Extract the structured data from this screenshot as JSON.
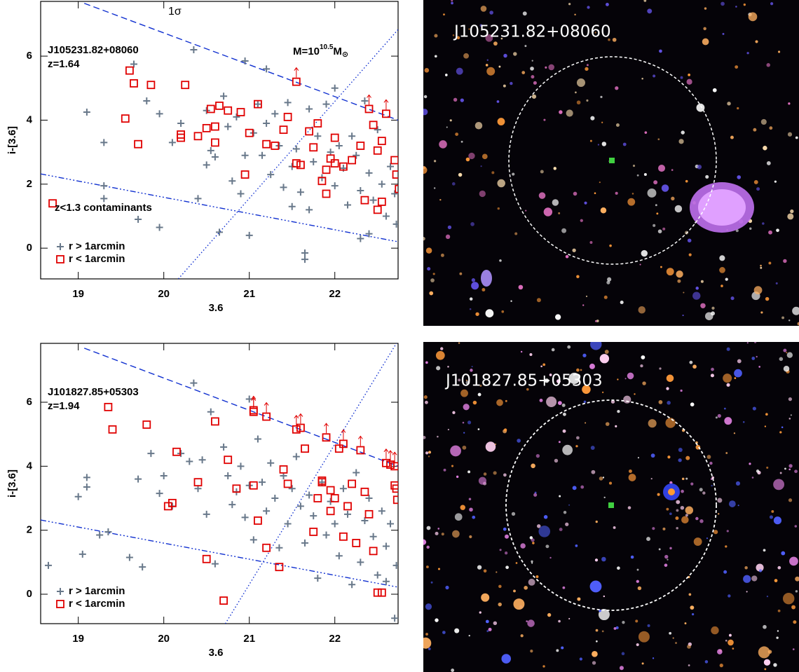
{
  "chart_data": [
    {
      "type": "scatter",
      "title": "J105231.82+08060",
      "subtitle": "z=1.64",
      "x_label": "3.6",
      "y_label": "i-[3.6]",
      "annotations": [
        "1σ",
        "z<1.3 contaminants"
      ],
      "mass_label": [
        "M=10",
        "10.5",
        "M",
        "⊙"
      ],
      "xlim": [
        18.56,
        22.74
      ],
      "ylim": [
        -0.96,
        7.71
      ],
      "xticks": [
        19,
        20,
        21,
        22
      ],
      "yticks": [
        0,
        2,
        4,
        6
      ],
      "series": [
        {
          "name": "r > 1arcmin",
          "color": "#68788a",
          "marker": "plus",
          "x": [
            19.1,
            19.3,
            19.3,
            19.3,
            19.65,
            19.7,
            19.8,
            19.95,
            19.95,
            20.1,
            20.2,
            20.35,
            20.4,
            20.5,
            20.5,
            20.55,
            20.6,
            20.65,
            20.7,
            20.75,
            20.8,
            20.85,
            20.9,
            20.95,
            21.0,
            21.05,
            21.1,
            21.15,
            21.2,
            21.25,
            21.3,
            21.35,
            21.4,
            21.45,
            21.5,
            21.55,
            21.6,
            21.65,
            21.65,
            21.7,
            21.7,
            21.75,
            21.8,
            21.85,
            21.9,
            21.95,
            22.0,
            22.05,
            22.1,
            22.15,
            22.2,
            22.25,
            22.3,
            22.35,
            22.4,
            22.4,
            22.45,
            22.5,
            22.55,
            22.6,
            22.65,
            22.7,
            22.72,
            22.3,
            21.2,
            20.95,
            22.0,
            21.5
          ],
          "values": [
            4.25,
            3.3,
            1.55,
            1.95,
            5.75,
            0.9,
            4.6,
            4.2,
            0.65,
            3.3,
            3.9,
            6.2,
            1.55,
            2.6,
            4.3,
            3.05,
            2.85,
            0.5,
            4.75,
            3.8,
            2.1,
            4.1,
            1.7,
            2.9,
            0.4,
            3.6,
            4.5,
            2.9,
            3.9,
            2.3,
            4.2,
            3.2,
            1.9,
            4.55,
            2.55,
            3.1,
            1.75,
            -0.15,
            -0.35,
            4.35,
            1.2,
            2.7,
            3.5,
            2.2,
            4.5,
            3.0,
            1.95,
            3.2,
            2.5,
            1.35,
            3.5,
            2.9,
            1.8,
            4.6,
            0.45,
            2.35,
            1.5,
            3.7,
            2.0,
            1.0,
            2.55,
            1.7,
            0.75,
            0.3,
            5.6,
            5.85,
            5.0,
            1.3
          ]
        },
        {
          "name": "r < 1arcmin",
          "color": "#e00000",
          "marker": "square",
          "x": [
            19.55,
            19.6,
            19.65,
            19.7,
            19.85,
            20.2,
            20.2,
            20.25,
            20.4,
            20.5,
            20.55,
            20.6,
            20.65,
            20.6,
            20.75,
            20.9,
            20.95,
            21.0,
            21.1,
            21.2,
            21.3,
            21.4,
            21.45,
            21.55,
            21.55,
            21.7,
            21.75,
            21.8,
            21.85,
            21.9,
            21.95,
            22.0,
            22.2,
            22.3,
            22.35,
            22.4,
            22.45,
            22.5,
            22.55,
            22.5,
            22.55,
            22.6,
            22.7,
            22.72,
            22.75,
            18.7,
            21.6,
            22.1,
            21.9,
            22.0
          ],
          "values": [
            4.05,
            5.55,
            5.15,
            3.25,
            5.1,
            3.55,
            3.45,
            5.1,
            3.5,
            3.75,
            4.35,
            3.8,
            4.45,
            3.3,
            4.3,
            4.25,
            2.3,
            3.6,
            4.5,
            3.25,
            3.2,
            3.7,
            4.1,
            5.2,
            2.65,
            3.65,
            3.15,
            3.9,
            2.1,
            1.7,
            2.8,
            2.65,
            2.75,
            3.2,
            1.5,
            4.35,
            3.85,
            3.05,
            1.45,
            1.2,
            3.35,
            4.2,
            2.75,
            2.3,
            1.85,
            1.4,
            2.6,
            2.55,
            2.45,
            3.45
          ],
          "upper_limit": [
            false,
            false,
            false,
            false,
            false,
            false,
            false,
            false,
            false,
            false,
            false,
            false,
            false,
            false,
            false,
            false,
            false,
            false,
            false,
            false,
            false,
            false,
            false,
            true,
            false,
            false,
            false,
            false,
            false,
            false,
            false,
            false,
            false,
            false,
            false,
            true,
            false,
            false,
            false,
            false,
            false,
            true,
            false,
            false,
            false,
            false,
            false,
            false,
            false,
            false
          ]
        }
      ],
      "lines": [
        {
          "style": "dashed",
          "color": "#1030d0",
          "x": [
            19.07,
            22.74
          ],
          "values": [
            7.65,
            4.0
          ]
        },
        {
          "style": "dashdot",
          "color": "#1030d0",
          "x": [
            18.56,
            22.74
          ],
          "values": [
            2.32,
            0.2
          ]
        },
        {
          "style": "dotted",
          "color": "#1030d0",
          "x": [
            20.17,
            22.74
          ],
          "values": [
            -0.96,
            6.83
          ]
        }
      ]
    },
    {
      "type": "scatter",
      "title": "J101827.85+05303",
      "subtitle": "z=1.94",
      "x_label": "3.6",
      "y_label": "i-[3.6]",
      "xlim": [
        18.56,
        22.74
      ],
      "ylim": [
        -0.92,
        7.84
      ],
      "xticks": [
        19,
        20,
        21,
        22
      ],
      "yticks": [
        0,
        2,
        4,
        6
      ],
      "series": [
        {
          "name": "r > 1arcmin",
          "color": "#68788a",
          "marker": "plus",
          "x": [
            18.65,
            19.0,
            19.05,
            19.1,
            19.1,
            19.25,
            19.35,
            19.6,
            19.7,
            19.75,
            19.85,
            19.95,
            20.0,
            20.1,
            20.2,
            20.3,
            20.35,
            20.4,
            20.45,
            20.5,
            20.55,
            20.6,
            20.7,
            20.75,
            20.8,
            20.85,
            20.9,
            20.95,
            21.0,
            21.05,
            21.1,
            21.15,
            21.2,
            21.25,
            21.3,
            21.35,
            21.4,
            21.45,
            21.5,
            21.55,
            21.6,
            21.65,
            21.7,
            21.75,
            21.8,
            21.85,
            21.9,
            21.95,
            22.0,
            22.05,
            22.1,
            22.15,
            22.2,
            22.25,
            22.3,
            22.35,
            22.4,
            22.45,
            22.5,
            22.55,
            22.6,
            22.65,
            22.7,
            22.72,
            22.6,
            21.0
          ],
          "values": [
            0.9,
            3.05,
            1.25,
            3.35,
            3.65,
            1.85,
            1.95,
            1.15,
            3.6,
            0.85,
            4.4,
            3.15,
            3.7,
            2.75,
            4.4,
            4.15,
            6.6,
            3.3,
            4.2,
            2.5,
            5.7,
            0.95,
            4.6,
            3.7,
            2.8,
            3.2,
            4.0,
            2.4,
            3.4,
            1.7,
            4.85,
            3.5,
            2.6,
            4.1,
            3.0,
            1.45,
            3.7,
            2.2,
            3.3,
            4.3,
            2.75,
            1.6,
            3.1,
            2.45,
            0.5,
            3.5,
            1.85,
            2.9,
            2.2,
            1.2,
            3.3,
            2.5,
            0.3,
            3.8,
            1.0,
            2.3,
            3.0,
            1.8,
            0.6,
            2.6,
            1.5,
            2.2,
            -0.75,
            0.9,
            0.4,
            6.1
          ]
        },
        {
          "name": "r < 1arcmin",
          "color": "#e00000",
          "marker": "square",
          "x": [
            19.35,
            19.4,
            19.8,
            20.05,
            20.1,
            20.15,
            20.4,
            20.5,
            20.6,
            20.7,
            20.75,
            20.85,
            21.05,
            21.05,
            21.05,
            21.1,
            21.2,
            21.2,
            21.35,
            21.4,
            21.45,
            21.55,
            21.6,
            21.65,
            21.75,
            21.8,
            21.85,
            21.9,
            21.95,
            22.0,
            22.05,
            22.1,
            22.1,
            22.15,
            22.2,
            22.25,
            22.3,
            22.35,
            22.4,
            22.45,
            22.5,
            22.55,
            22.6,
            22.65,
            22.7,
            22.7,
            22.72,
            22.73,
            21.95,
            21.85
          ],
          "values": [
            5.85,
            5.15,
            5.3,
            2.75,
            2.85,
            4.45,
            3.5,
            1.1,
            5.4,
            -0.2,
            4.2,
            3.3,
            5.75,
            5.7,
            3.4,
            2.3,
            5.55,
            1.45,
            0.85,
            3.9,
            3.45,
            5.15,
            5.2,
            4.55,
            1.95,
            3.0,
            3.5,
            4.9,
            2.6,
            3.0,
            4.55,
            4.7,
            1.8,
            2.75,
            3.45,
            1.6,
            4.5,
            3.2,
            2.5,
            1.35,
            0.05,
            0.05,
            4.1,
            4.05,
            4.0,
            3.4,
            3.3,
            2.95,
            3.25,
            3.55
          ],
          "upper_limit": [
            false,
            false,
            false,
            false,
            false,
            false,
            false,
            false,
            false,
            false,
            false,
            false,
            true,
            true,
            false,
            false,
            true,
            false,
            false,
            false,
            false,
            true,
            true,
            false,
            false,
            false,
            false,
            true,
            false,
            false,
            false,
            true,
            false,
            false,
            false,
            false,
            true,
            false,
            false,
            false,
            false,
            false,
            true,
            true,
            true,
            false,
            false,
            false,
            false,
            false
          ]
        }
      ],
      "lines": [
        {
          "style": "dashed",
          "color": "#1030d0",
          "x": [
            19.07,
            22.74
          ],
          "values": [
            7.69,
            4.0
          ]
        },
        {
          "style": "dashdot",
          "color": "#1030d0",
          "x": [
            18.56,
            22.74
          ],
          "values": [
            2.32,
            0.22
          ]
        },
        {
          "style": "dotted",
          "color": "#1030d0",
          "x": [
            20.72,
            22.72
          ],
          "values": [
            -0.92,
            7.84
          ]
        }
      ]
    }
  ],
  "images": [
    {
      "label": "J105231.82+08060"
    },
    {
      "label": "J101827.85+05303"
    }
  ]
}
